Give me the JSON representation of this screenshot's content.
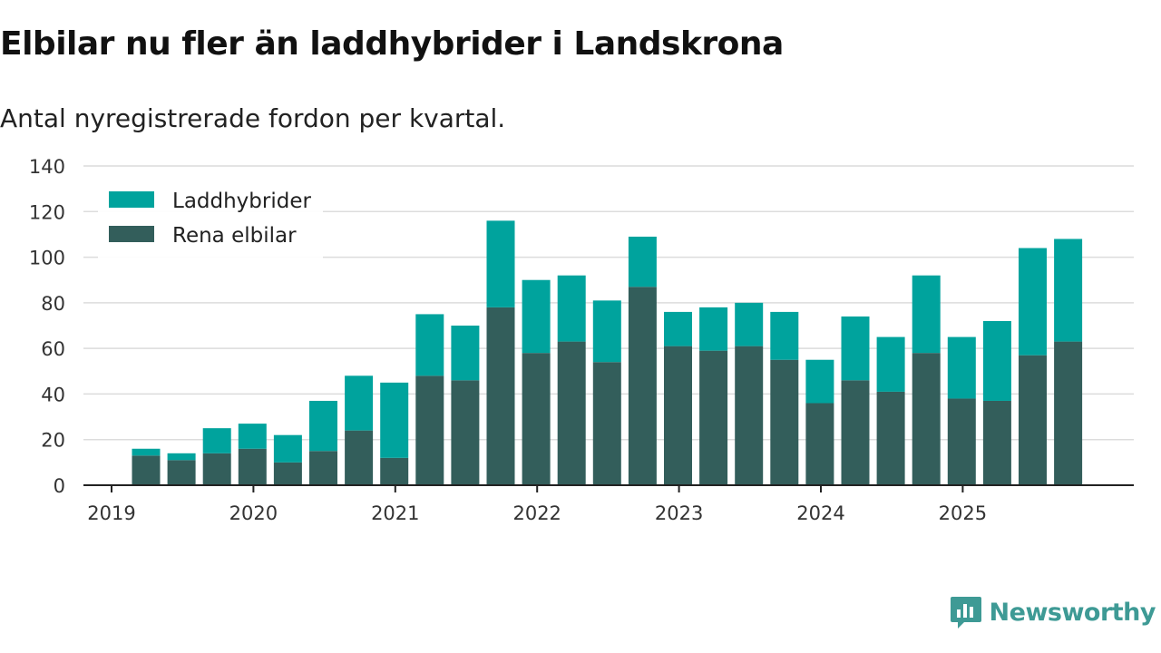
{
  "chart_data": {
    "type": "bar",
    "stacked": true,
    "title": "Elbilar nu fler än laddhybrider i Landskrona",
    "subtitle": "Antal nyregistrerade fordon per kvartal.",
    "xlabel": "",
    "ylabel": "",
    "ylim": [
      0,
      140
    ],
    "yticks": [
      0,
      20,
      40,
      60,
      80,
      100,
      120,
      140
    ],
    "grid": true,
    "legend_position": "top-left",
    "x_tick_labels": [
      "2019",
      "2020",
      "2021",
      "2022",
      "2023",
      "2024",
      "2025"
    ],
    "categories": [
      "2019 Q2",
      "2019 Q3",
      "2019 Q4",
      "2020 Q1",
      "2020 Q2",
      "2020 Q3",
      "2020 Q4",
      "2021 Q1",
      "2021 Q2",
      "2021 Q3",
      "2021 Q4",
      "2022 Q1",
      "2022 Q2",
      "2022 Q3",
      "2022 Q4",
      "2023 Q1",
      "2023 Q2",
      "2023 Q3",
      "2023 Q4",
      "2024 Q1",
      "2024 Q2",
      "2024 Q3",
      "2024 Q4",
      "2025 Q1",
      "2025 Q2",
      "2025 Q3",
      "2025 Q4"
    ],
    "series": [
      {
        "name": "Rena elbilar",
        "color": "#335e5b",
        "values": [
          13,
          11,
          14,
          16,
          10,
          15,
          24,
          12,
          48,
          46,
          78,
          58,
          63,
          54,
          87,
          61,
          59,
          61,
          55,
          36,
          46,
          41,
          58,
          38,
          37,
          57,
          63
        ]
      },
      {
        "name": "Laddhybrider",
        "color": "#00a39d",
        "values": [
          3,
          3,
          11,
          11,
          12,
          22,
          24,
          33,
          27,
          24,
          38,
          32,
          29,
          27,
          22,
          15,
          19,
          19,
          21,
          19,
          28,
          24,
          34,
          27,
          35,
          47,
          45
        ]
      }
    ]
  },
  "legend": {
    "items": [
      "Laddhybrider",
      "Rena elbilar"
    ],
    "colors": [
      "#00a39d",
      "#335e5b"
    ]
  },
  "brand": {
    "name": "Newsworthy",
    "color": "#3e9a95"
  }
}
